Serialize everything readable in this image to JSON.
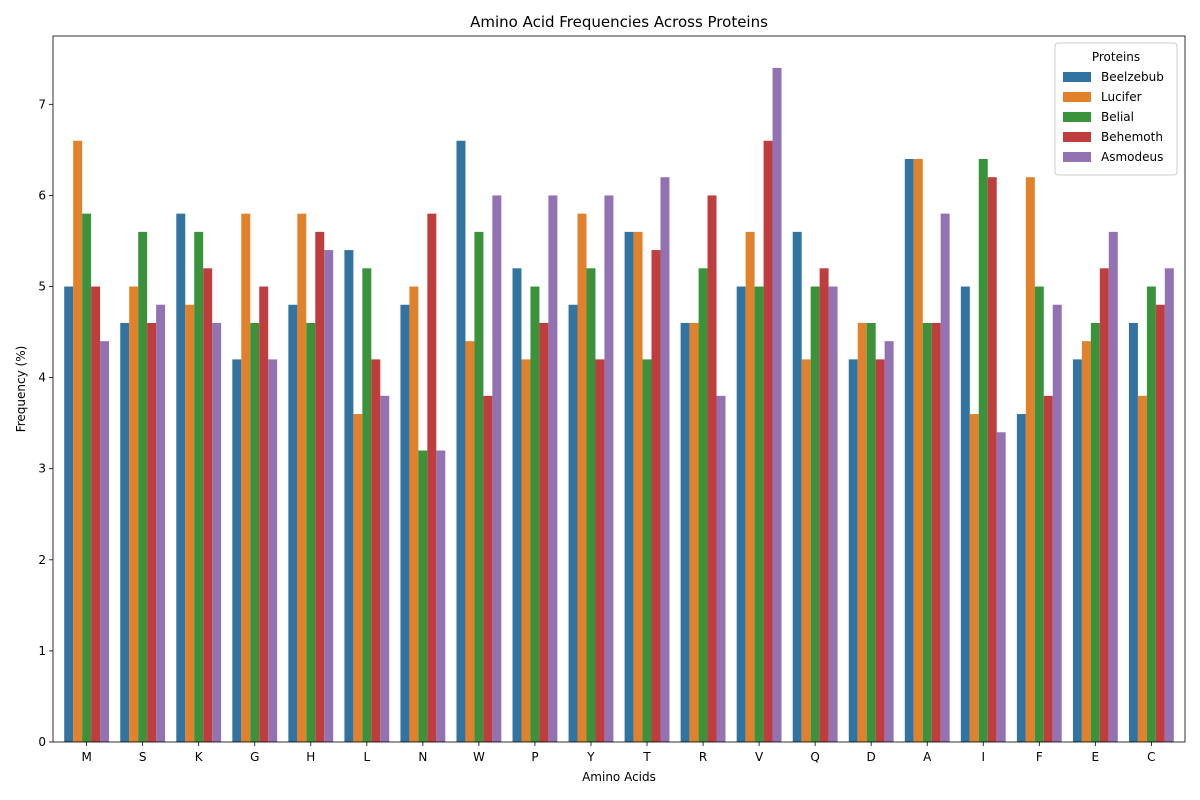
{
  "chart_data": {
    "type": "bar",
    "title": "Amino Acid Frequencies Across Proteins",
    "xlabel": "Amino Acids",
    "ylabel": "Frequency (%)",
    "ylim": [
      0,
      7.75
    ],
    "yticks": [
      0,
      1,
      2,
      3,
      4,
      5,
      6,
      7
    ],
    "grid": false,
    "legend": {
      "title": "Proteins",
      "placement": "top-right"
    },
    "categories": [
      "M",
      "S",
      "K",
      "G",
      "H",
      "L",
      "N",
      "W",
      "P",
      "Y",
      "T",
      "R",
      "V",
      "Q",
      "D",
      "A",
      "I",
      "F",
      "E",
      "C"
    ],
    "series": [
      {
        "name": "Beelzebub",
        "color": "#3274a1",
        "values": [
          5.0,
          4.6,
          5.8,
          4.2,
          4.8,
          5.4,
          4.8,
          6.6,
          5.2,
          4.8,
          5.6,
          4.6,
          5.0,
          5.6,
          4.2,
          6.4,
          5.0,
          3.6,
          4.2,
          4.6
        ]
      },
      {
        "name": "Lucifer",
        "color": "#e1812c",
        "values": [
          6.6,
          5.0,
          4.8,
          5.8,
          5.8,
          3.6,
          5.0,
          4.4,
          4.2,
          5.8,
          5.6,
          4.6,
          5.6,
          4.2,
          4.6,
          6.4,
          3.6,
          6.2,
          4.4,
          3.8
        ]
      },
      {
        "name": "Belial",
        "color": "#3a923a",
        "values": [
          5.8,
          5.6,
          5.6,
          4.6,
          4.6,
          5.2,
          3.2,
          5.6,
          5.0,
          5.2,
          4.2,
          5.2,
          5.0,
          5.0,
          4.6,
          4.6,
          6.4,
          5.0,
          4.6,
          5.0
        ]
      },
      {
        "name": "Behemoth",
        "color": "#c03d3e",
        "values": [
          5.0,
          4.6,
          5.2,
          5.0,
          5.6,
          4.2,
          5.8,
          3.8,
          4.6,
          4.2,
          5.4,
          6.0,
          6.6,
          5.2,
          4.2,
          4.6,
          6.2,
          3.8,
          5.2,
          4.8
        ]
      },
      {
        "name": "Asmodeus",
        "color": "#9372b2",
        "values": [
          4.4,
          4.8,
          4.6,
          4.2,
          5.4,
          3.8,
          3.2,
          6.0,
          6.0,
          6.0,
          6.2,
          3.8,
          7.4,
          5.0,
          4.4,
          5.8,
          3.4,
          4.8,
          5.6,
          5.2
        ]
      }
    ]
  }
}
